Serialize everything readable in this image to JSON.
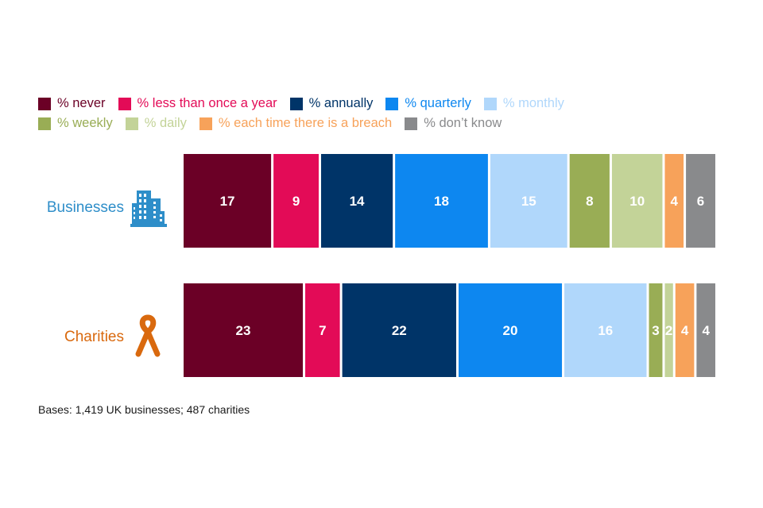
{
  "chart_data": {
    "type": "bar",
    "orientation": "horizontal-stacked-100",
    "categories": [
      "Businesses",
      "Charities"
    ],
    "series": [
      {
        "name": "% never",
        "color": "#6b0026",
        "values": [
          17,
          23
        ]
      },
      {
        "name": "% less than once a year",
        "color": "#e30b57",
        "values": [
          9,
          7
        ]
      },
      {
        "name": "% annually",
        "color": "#003468",
        "values": [
          14,
          22
        ]
      },
      {
        "name": "% quarterly",
        "color": "#0d87f0",
        "values": [
          18,
          20
        ]
      },
      {
        "name": "% monthly",
        "color": "#b0d7fb",
        "values": [
          15,
          16
        ]
      },
      {
        "name": "% weekly",
        "color": "#99ad55",
        "values": [
          8,
          3
        ]
      },
      {
        "name": "% daily",
        "color": "#c3d398",
        "values": [
          10,
          2
        ]
      },
      {
        "name": "% each time there is a breach",
        "color": "#f7a25a",
        "values": [
          4,
          4
        ]
      },
      {
        "name": "% don’t know",
        "color": "#898a8c",
        "values": [
          6,
          4
        ]
      }
    ],
    "category_colors": [
      "#2e8ec9",
      "#d9690e"
    ],
    "category_icons": [
      "office-building-icon",
      "ribbon-icon"
    ],
    "legend_position": "top-left",
    "title": "",
    "xlabel": "",
    "ylabel": ""
  },
  "footnote": "Bases: 1,419 UK businesses; 487 charities"
}
